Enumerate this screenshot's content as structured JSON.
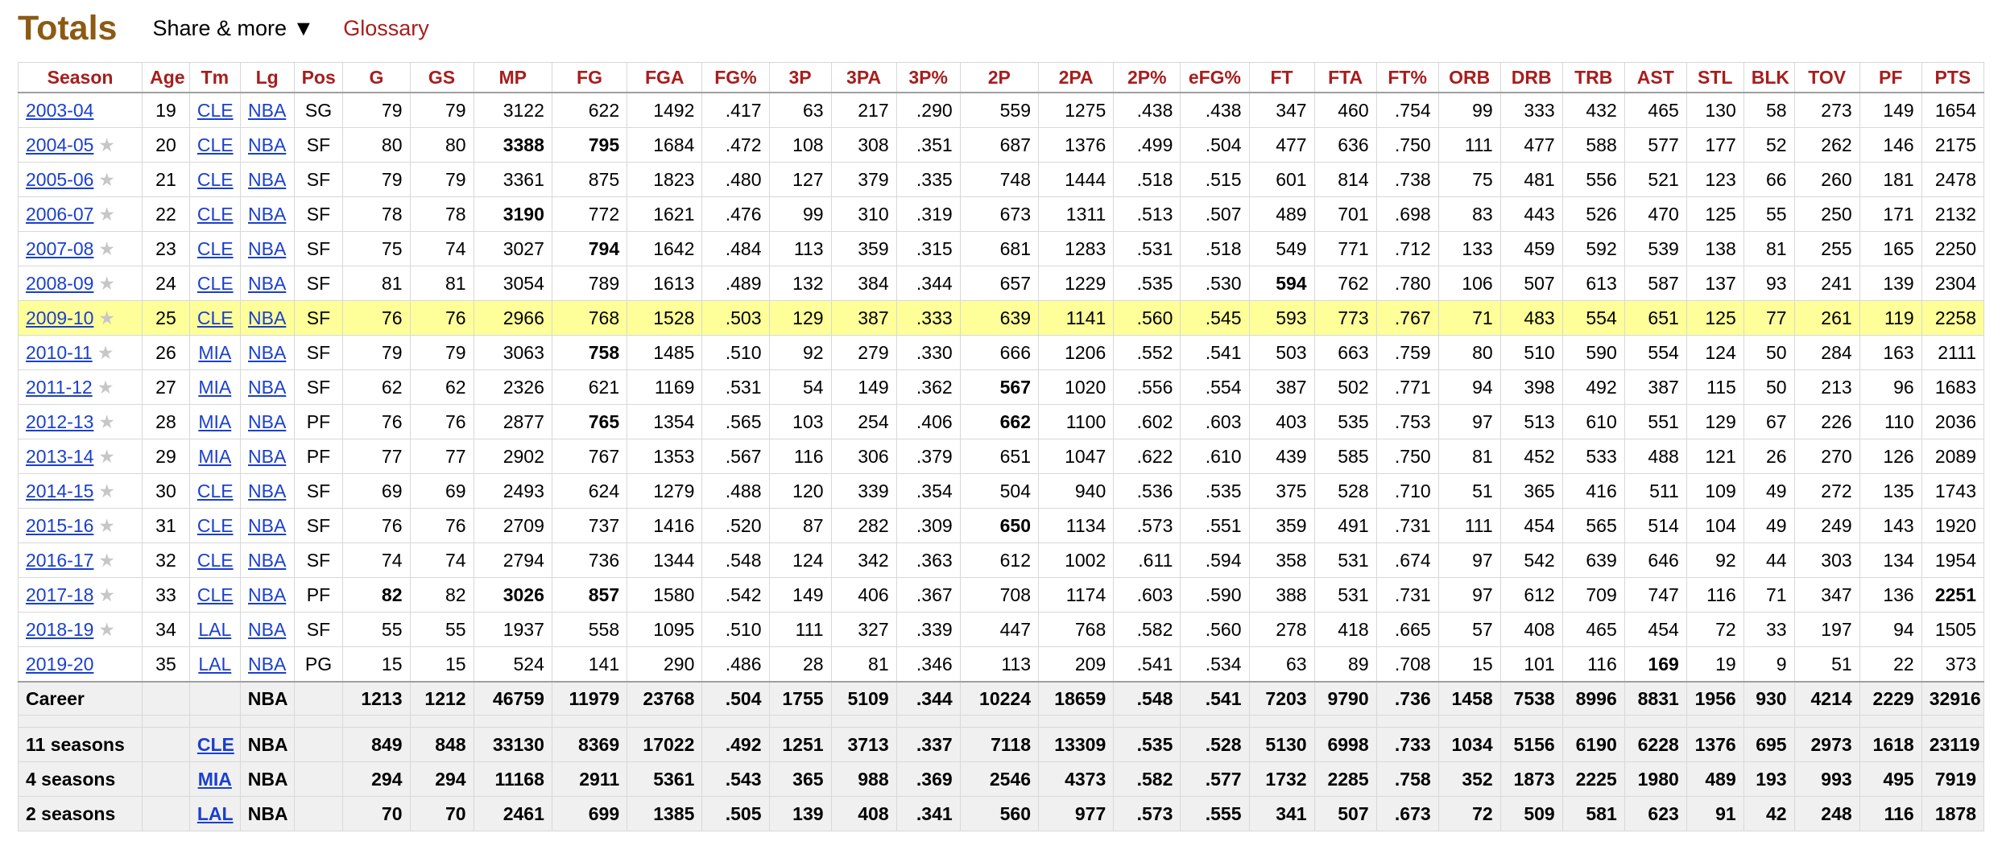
{
  "header": {
    "title": "Totals",
    "share_label": "Share & more",
    "share_arrow": "▼",
    "glossary_label": "Glossary"
  },
  "columns": [
    "Season",
    "Age",
    "Tm",
    "Lg",
    "Pos",
    "G",
    "GS",
    "MP",
    "FG",
    "FGA",
    "FG%",
    "3P",
    "3PA",
    "3P%",
    "2P",
    "2PA",
    "2P%",
    "eFG%",
    "FT",
    "FTA",
    "FT%",
    "ORB",
    "DRB",
    "TRB",
    "AST",
    "STL",
    "BLK",
    "TOV",
    "PF",
    "PTS"
  ],
  "bold_cells": {
    "2004-05": [
      "MP",
      "FG"
    ],
    "2006-07": [
      "MP"
    ],
    "2007-08": [
      "FG"
    ],
    "2008-09": [
      "FT"
    ],
    "2010-11": [
      "FG"
    ],
    "2011-12": [
      "2P"
    ],
    "2012-13": [
      "FG",
      "2P"
    ],
    "2015-16": [
      "2P"
    ],
    "2017-18": [
      "G",
      "MP",
      "FG",
      "PTS"
    ],
    "2019-20": [
      "AST"
    ]
  },
  "rows": [
    {
      "season": "2003-04",
      "star": false,
      "highlight": false,
      "cells": [
        "19",
        "CLE",
        "NBA",
        "SG",
        "79",
        "79",
        "3122",
        "622",
        "1492",
        ".417",
        "63",
        "217",
        ".290",
        "559",
        "1275",
        ".438",
        ".438",
        "347",
        "460",
        ".754",
        "99",
        "333",
        "432",
        "465",
        "130",
        "58",
        "273",
        "149",
        "1654"
      ]
    },
    {
      "season": "2004-05",
      "star": true,
      "highlight": false,
      "cells": [
        "20",
        "CLE",
        "NBA",
        "SF",
        "80",
        "80",
        "3388",
        "795",
        "1684",
        ".472",
        "108",
        "308",
        ".351",
        "687",
        "1376",
        ".499",
        ".504",
        "477",
        "636",
        ".750",
        "111",
        "477",
        "588",
        "577",
        "177",
        "52",
        "262",
        "146",
        "2175"
      ]
    },
    {
      "season": "2005-06",
      "star": true,
      "highlight": false,
      "cells": [
        "21",
        "CLE",
        "NBA",
        "SF",
        "79",
        "79",
        "3361",
        "875",
        "1823",
        ".480",
        "127",
        "379",
        ".335",
        "748",
        "1444",
        ".518",
        ".515",
        "601",
        "814",
        ".738",
        "75",
        "481",
        "556",
        "521",
        "123",
        "66",
        "260",
        "181",
        "2478"
      ]
    },
    {
      "season": "2006-07",
      "star": true,
      "highlight": false,
      "cells": [
        "22",
        "CLE",
        "NBA",
        "SF",
        "78",
        "78",
        "3190",
        "772",
        "1621",
        ".476",
        "99",
        "310",
        ".319",
        "673",
        "1311",
        ".513",
        ".507",
        "489",
        "701",
        ".698",
        "83",
        "443",
        "526",
        "470",
        "125",
        "55",
        "250",
        "171",
        "2132"
      ]
    },
    {
      "season": "2007-08",
      "star": true,
      "highlight": false,
      "cells": [
        "23",
        "CLE",
        "NBA",
        "SF",
        "75",
        "74",
        "3027",
        "794",
        "1642",
        ".484",
        "113",
        "359",
        ".315",
        "681",
        "1283",
        ".531",
        ".518",
        "549",
        "771",
        ".712",
        "133",
        "459",
        "592",
        "539",
        "138",
        "81",
        "255",
        "165",
        "2250"
      ]
    },
    {
      "season": "2008-09",
      "star": true,
      "highlight": false,
      "cells": [
        "24",
        "CLE",
        "NBA",
        "SF",
        "81",
        "81",
        "3054",
        "789",
        "1613",
        ".489",
        "132",
        "384",
        ".344",
        "657",
        "1229",
        ".535",
        ".530",
        "594",
        "762",
        ".780",
        "106",
        "507",
        "613",
        "587",
        "137",
        "93",
        "241",
        "139",
        "2304"
      ]
    },
    {
      "season": "2009-10",
      "star": true,
      "highlight": true,
      "cells": [
        "25",
        "CLE",
        "NBA",
        "SF",
        "76",
        "76",
        "2966",
        "768",
        "1528",
        ".503",
        "129",
        "387",
        ".333",
        "639",
        "1141",
        ".560",
        ".545",
        "593",
        "773",
        ".767",
        "71",
        "483",
        "554",
        "651",
        "125",
        "77",
        "261",
        "119",
        "2258"
      ]
    },
    {
      "season": "2010-11",
      "star": true,
      "highlight": false,
      "cells": [
        "26",
        "MIA",
        "NBA",
        "SF",
        "79",
        "79",
        "3063",
        "758",
        "1485",
        ".510",
        "92",
        "279",
        ".330",
        "666",
        "1206",
        ".552",
        ".541",
        "503",
        "663",
        ".759",
        "80",
        "510",
        "590",
        "554",
        "124",
        "50",
        "284",
        "163",
        "2111"
      ]
    },
    {
      "season": "2011-12",
      "star": true,
      "highlight": false,
      "cells": [
        "27",
        "MIA",
        "NBA",
        "SF",
        "62",
        "62",
        "2326",
        "621",
        "1169",
        ".531",
        "54",
        "149",
        ".362",
        "567",
        "1020",
        ".556",
        ".554",
        "387",
        "502",
        ".771",
        "94",
        "398",
        "492",
        "387",
        "115",
        "50",
        "213",
        "96",
        "1683"
      ]
    },
    {
      "season": "2012-13",
      "star": true,
      "highlight": false,
      "cells": [
        "28",
        "MIA",
        "NBA",
        "PF",
        "76",
        "76",
        "2877",
        "765",
        "1354",
        ".565",
        "103",
        "254",
        ".406",
        "662",
        "1100",
        ".602",
        ".603",
        "403",
        "535",
        ".753",
        "97",
        "513",
        "610",
        "551",
        "129",
        "67",
        "226",
        "110",
        "2036"
      ]
    },
    {
      "season": "2013-14",
      "star": true,
      "highlight": false,
      "cells": [
        "29",
        "MIA",
        "NBA",
        "PF",
        "77",
        "77",
        "2902",
        "767",
        "1353",
        ".567",
        "116",
        "306",
        ".379",
        "651",
        "1047",
        ".622",
        ".610",
        "439",
        "585",
        ".750",
        "81",
        "452",
        "533",
        "488",
        "121",
        "26",
        "270",
        "126",
        "2089"
      ]
    },
    {
      "season": "2014-15",
      "star": true,
      "highlight": false,
      "cells": [
        "30",
        "CLE",
        "NBA",
        "SF",
        "69",
        "69",
        "2493",
        "624",
        "1279",
        ".488",
        "120",
        "339",
        ".354",
        "504",
        "940",
        ".536",
        ".535",
        "375",
        "528",
        ".710",
        "51",
        "365",
        "416",
        "511",
        "109",
        "49",
        "272",
        "135",
        "1743"
      ]
    },
    {
      "season": "2015-16",
      "star": true,
      "highlight": false,
      "cells": [
        "31",
        "CLE",
        "NBA",
        "SF",
        "76",
        "76",
        "2709",
        "737",
        "1416",
        ".520",
        "87",
        "282",
        ".309",
        "650",
        "1134",
        ".573",
        ".551",
        "359",
        "491",
        ".731",
        "111",
        "454",
        "565",
        "514",
        "104",
        "49",
        "249",
        "143",
        "1920"
      ]
    },
    {
      "season": "2016-17",
      "star": true,
      "highlight": false,
      "cells": [
        "32",
        "CLE",
        "NBA",
        "SF",
        "74",
        "74",
        "2794",
        "736",
        "1344",
        ".548",
        "124",
        "342",
        ".363",
        "612",
        "1002",
        ".611",
        ".594",
        "358",
        "531",
        ".674",
        "97",
        "542",
        "639",
        "646",
        "92",
        "44",
        "303",
        "134",
        "1954"
      ]
    },
    {
      "season": "2017-18",
      "star": true,
      "highlight": false,
      "cells": [
        "33",
        "CLE",
        "NBA",
        "PF",
        "82",
        "82",
        "3026",
        "857",
        "1580",
        ".542",
        "149",
        "406",
        ".367",
        "708",
        "1174",
        ".603",
        ".590",
        "388",
        "531",
        ".731",
        "97",
        "612",
        "709",
        "747",
        "116",
        "71",
        "347",
        "136",
        "2251"
      ]
    },
    {
      "season": "2018-19",
      "star": true,
      "highlight": false,
      "cells": [
        "34",
        "LAL",
        "NBA",
        "SF",
        "55",
        "55",
        "1937",
        "558",
        "1095",
        ".510",
        "111",
        "327",
        ".339",
        "447",
        "768",
        ".582",
        ".560",
        "278",
        "418",
        ".665",
        "57",
        "408",
        "465",
        "454",
        "72",
        "33",
        "197",
        "94",
        "1505"
      ]
    },
    {
      "season": "2019-20",
      "star": false,
      "highlight": false,
      "cells": [
        "35",
        "LAL",
        "NBA",
        "PG",
        "15",
        "15",
        "524",
        "141",
        "290",
        ".486",
        "28",
        "81",
        ".346",
        "113",
        "209",
        ".541",
        ".534",
        "63",
        "89",
        ".708",
        "15",
        "101",
        "116",
        "169",
        "19",
        "9",
        "51",
        "22",
        "373"
      ]
    }
  ],
  "career": {
    "label": "Career",
    "lg": "NBA",
    "cells": [
      "1213",
      "1212",
      "46759",
      "11979",
      "23768",
      ".504",
      "1755",
      "5109",
      ".344",
      "10224",
      "18659",
      ".548",
      ".541",
      "7203",
      "9790",
      ".736",
      "1458",
      "7538",
      "8996",
      "8831",
      "1956",
      "930",
      "4214",
      "2229",
      "32916"
    ]
  },
  "teams": [
    {
      "label": "11 seasons",
      "tm": "CLE",
      "lg": "NBA",
      "cells": [
        "849",
        "848",
        "33130",
        "8369",
        "17022",
        ".492",
        "1251",
        "3713",
        ".337",
        "7118",
        "13309",
        ".535",
        ".528",
        "5130",
        "6998",
        ".733",
        "1034",
        "5156",
        "6190",
        "6228",
        "1376",
        "695",
        "2973",
        "1618",
        "23119"
      ]
    },
    {
      "label": "4 seasons",
      "tm": "MIA",
      "lg": "NBA",
      "cells": [
        "294",
        "294",
        "11168",
        "2911",
        "5361",
        ".543",
        "365",
        "988",
        ".369",
        "2546",
        "4373",
        ".582",
        ".577",
        "1732",
        "2285",
        ".758",
        "352",
        "1873",
        "2225",
        "1980",
        "489",
        "193",
        "993",
        "495",
        "7919"
      ]
    },
    {
      "label": "2 seasons",
      "tm": "LAL",
      "lg": "NBA",
      "cells": [
        "70",
        "70",
        "2461",
        "699",
        "1385",
        ".505",
        "139",
        "408",
        ".341",
        "560",
        "977",
        ".573",
        ".555",
        "341",
        "507",
        ".673",
        "72",
        "509",
        "581",
        "623",
        "91",
        "42",
        "248",
        "116",
        "1878"
      ]
    }
  ],
  "colors": {
    "title": "#8c5a13",
    "header_text": "#a81d1d",
    "link": "#1a3fcf",
    "highlight_row": "#ffff99",
    "summary_bg": "#f0f0f0"
  }
}
